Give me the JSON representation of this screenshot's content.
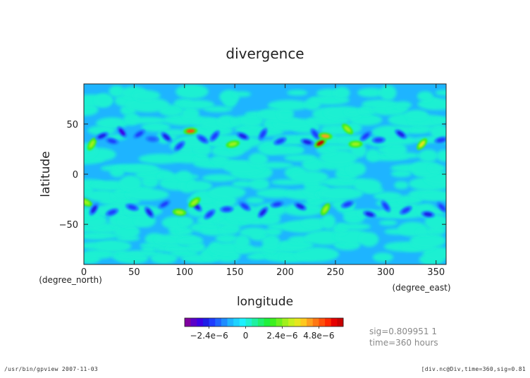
{
  "chart_data": {
    "type": "heatmap",
    "title": "divergence",
    "xlabel": "longitude",
    "ylabel": "latitude",
    "xunit": "(degree_east)",
    "yunit": "(degree_north)",
    "xlim": [
      0,
      360
    ],
    "ylim": [
      -90,
      90
    ],
    "x_ticks": [
      0,
      50,
      100,
      150,
      200,
      250,
      300,
      350
    ],
    "y_ticks": [
      50,
      0,
      -50
    ],
    "colorbar": {
      "colors": [
        "#8000a0",
        "#5a00c8",
        "#3c00e6",
        "#1e1ee6",
        "#1e3cff",
        "#1e64ff",
        "#1e8cff",
        "#1eb4ff",
        "#1ed2ff",
        "#1ef0ff",
        "#1ef0d2",
        "#1ef0a0",
        "#1ef06e",
        "#1ef03c",
        "#3cf01e",
        "#6ef01e",
        "#a0f01e",
        "#c8f01e",
        "#e6e61e",
        "#ffc81e",
        "#ffa01e",
        "#ff7814",
        "#ff500a",
        "#ff2800",
        "#e60000",
        "#c80000"
      ],
      "tick_labels": [
        "−2.4e−6",
        "0",
        "2.4e−6",
        "4.8e−6"
      ],
      "tick_values": [
        -2.4e-06,
        0,
        2.4e-06,
        4.8e-06
      ],
      "range": [
        -4e-06,
        6.4e-06
      ]
    },
    "background_value_color": "#1ef0d2",
    "features": [
      {
        "lon": 8,
        "lat": 30,
        "value": 2.4e-06
      },
      {
        "lon": 18,
        "lat": 38,
        "value": -2.8e-06
      },
      {
        "lon": 28,
        "lat": 33,
        "value": -2.4e-06
      },
      {
        "lon": 38,
        "lat": 42,
        "value": -3.2e-06
      },
      {
        "lon": 55,
        "lat": 40,
        "value": -2.4e-06
      },
      {
        "lon": 68,
        "lat": 35,
        "value": -2e-06
      },
      {
        "lon": 82,
        "lat": 37,
        "value": -2.8e-06
      },
      {
        "lon": 95,
        "lat": 28,
        "value": -2.4e-06
      },
      {
        "lon": 106,
        "lat": 43,
        "value": 4.8e-06
      },
      {
        "lon": 118,
        "lat": 35,
        "value": -2.4e-06
      },
      {
        "lon": 130,
        "lat": 38,
        "value": -2.4e-06
      },
      {
        "lon": 148,
        "lat": 30,
        "value": 2.4e-06
      },
      {
        "lon": 158,
        "lat": 38,
        "value": -2.8e-06
      },
      {
        "lon": 178,
        "lat": 40,
        "value": -2.4e-06
      },
      {
        "lon": 195,
        "lat": 33,
        "value": -2.4e-06
      },
      {
        "lon": 222,
        "lat": 32,
        "value": -2.8e-06
      },
      {
        "lon": 230,
        "lat": 40,
        "value": -2.4e-06
      },
      {
        "lon": 235,
        "lat": 31,
        "value": 6e-06
      },
      {
        "lon": 240,
        "lat": 38,
        "value": 4e-06
      },
      {
        "lon": 262,
        "lat": 45,
        "value": 2.4e-06
      },
      {
        "lon": 280,
        "lat": 38,
        "value": -2.4e-06
      },
      {
        "lon": 293,
        "lat": 34,
        "value": -2.4e-06
      },
      {
        "lon": 315,
        "lat": 40,
        "value": -2.8e-06
      },
      {
        "lon": 336,
        "lat": 30,
        "value": 3.2e-06
      },
      {
        "lon": 355,
        "lat": 34,
        "value": -2.4e-06
      },
      {
        "lon": 2,
        "lat": -28,
        "value": 2.4e-06
      },
      {
        "lon": 10,
        "lat": -35,
        "value": -2.8e-06
      },
      {
        "lon": 28,
        "lat": -38,
        "value": -2.4e-06
      },
      {
        "lon": 48,
        "lat": -33,
        "value": -2.4e-06
      },
      {
        "lon": 65,
        "lat": -38,
        "value": -2.8e-06
      },
      {
        "lon": 80,
        "lat": -30,
        "value": -2.4e-06
      },
      {
        "lon": 95,
        "lat": -38,
        "value": 2.4e-06
      },
      {
        "lon": 112,
        "lat": -32,
        "value": -2.8e-06
      },
      {
        "lon": 125,
        "lat": -40,
        "value": -2.4e-06
      },
      {
        "lon": 142,
        "lat": -35,
        "value": -2.4e-06
      },
      {
        "lon": 160,
        "lat": -32,
        "value": -2.4e-06
      },
      {
        "lon": 178,
        "lat": -38,
        "value": -2.8e-06
      },
      {
        "lon": 192,
        "lat": -30,
        "value": -2.4e-06
      },
      {
        "lon": 215,
        "lat": -32,
        "value": -2.8e-06
      },
      {
        "lon": 240,
        "lat": -35,
        "value": 2.4e-06
      },
      {
        "lon": 262,
        "lat": -30,
        "value": -2.4e-06
      },
      {
        "lon": 284,
        "lat": -40,
        "value": -2.8e-06
      },
      {
        "lon": 300,
        "lat": -32,
        "value": -2.4e-06
      },
      {
        "lon": 320,
        "lat": -36,
        "value": -2.4e-06
      },
      {
        "lon": 342,
        "lat": -40,
        "value": -2.8e-06
      },
      {
        "lon": 356,
        "lat": -33,
        "value": -2.4e-06
      },
      {
        "lon": 110,
        "lat": -28,
        "value": 2.4e-06
      },
      {
        "lon": 270,
        "lat": 30,
        "value": 2.4e-06
      }
    ],
    "info_lines": [
      "sig=0.809951 1",
      "time=360 hours"
    ]
  },
  "footer": {
    "left": "/usr/bin/gpview   2007-11-03",
    "right": "[div.nc@Div,time=360,sig=0.81"
  }
}
